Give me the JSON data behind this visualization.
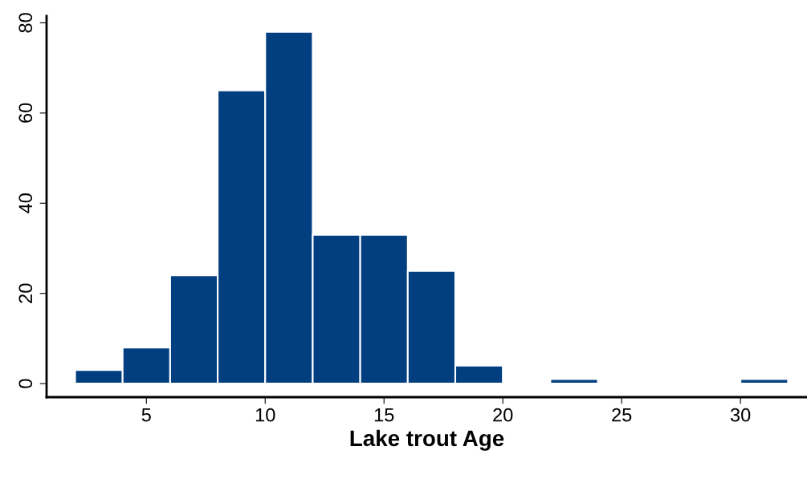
{
  "chart_data": {
    "type": "histogram",
    "xlabel": "Lake trout Age",
    "bins": [
      2,
      4,
      6,
      8,
      10,
      12,
      14,
      16,
      18,
      20,
      22,
      24,
      26,
      28,
      30,
      32
    ],
    "values": [
      3,
      8,
      24,
      65,
      78,
      33,
      33,
      25,
      4,
      0,
      1,
      0,
      0,
      0,
      1
    ],
    "color": "#023f80",
    "xlim": [
      0.8,
      32.8
    ],
    "ylim": [
      -3,
      81.5
    ],
    "xticks": [
      5,
      10,
      15,
      20,
      25,
      30
    ],
    "yticks": [
      0,
      20,
      40,
      60,
      80
    ],
    "grid": false
  }
}
